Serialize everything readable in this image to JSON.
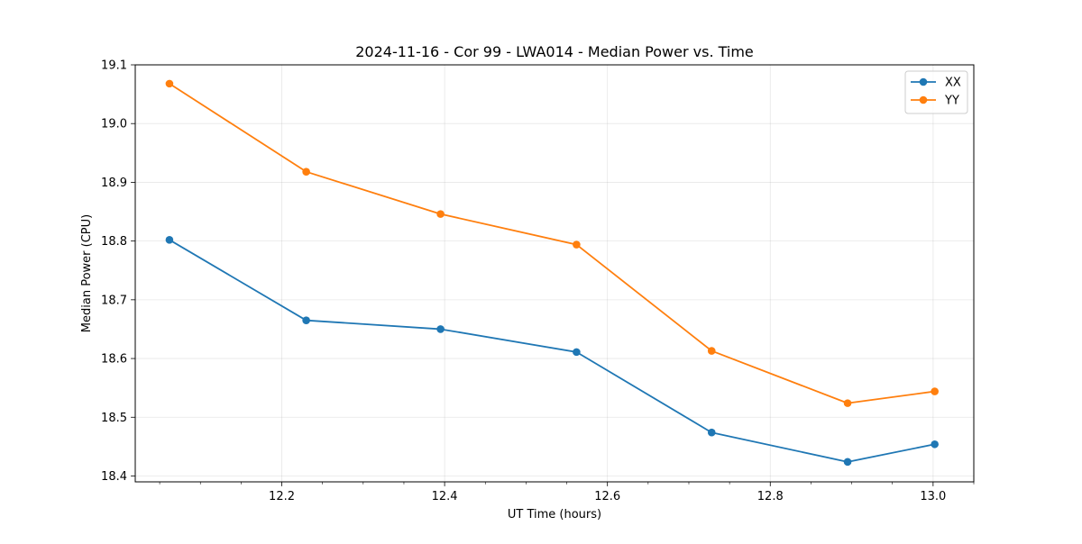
{
  "chart_data": {
    "type": "line",
    "title": "2024-11-16 - Cor 99 - LWA014 - Median Power vs. Time",
    "xlabel": "UT Time (hours)",
    "ylabel": "Median Power (CPU)",
    "xlim": [
      12.02,
      13.05
    ],
    "ylim": [
      18.39,
      19.1
    ],
    "x_major_ticks": [
      12.2,
      12.4,
      12.6,
      12.8,
      13.0
    ],
    "x_tick_labels": [
      "12.2",
      "12.4",
      "12.6",
      "12.8",
      "13.0"
    ],
    "x_minor_ticks": [
      12.05,
      12.1,
      12.15,
      12.25,
      12.3,
      12.35,
      12.45,
      12.5,
      12.55,
      12.65,
      12.7,
      12.75,
      12.85,
      12.9,
      12.95,
      13.05
    ],
    "y_major_ticks": [
      18.4,
      18.5,
      18.6,
      18.7,
      18.8,
      18.9,
      19.0,
      19.1
    ],
    "y_tick_labels": [
      "18.4",
      "18.5",
      "18.6",
      "18.7",
      "18.8",
      "18.9",
      "19.0",
      "19.1"
    ],
    "grid": true,
    "legend_position": "top-right",
    "x": [
      12.062,
      12.23,
      12.395,
      12.562,
      12.728,
      12.895,
      13.002
    ],
    "series": [
      {
        "name": "XX",
        "color": "#1f77b4",
        "values": [
          18.802,
          18.665,
          18.65,
          18.611,
          18.474,
          18.424,
          18.454
        ]
      },
      {
        "name": "YY",
        "color": "#ff7f0e",
        "values": [
          19.068,
          18.918,
          18.846,
          18.794,
          18.613,
          18.524,
          18.544
        ]
      }
    ]
  }
}
